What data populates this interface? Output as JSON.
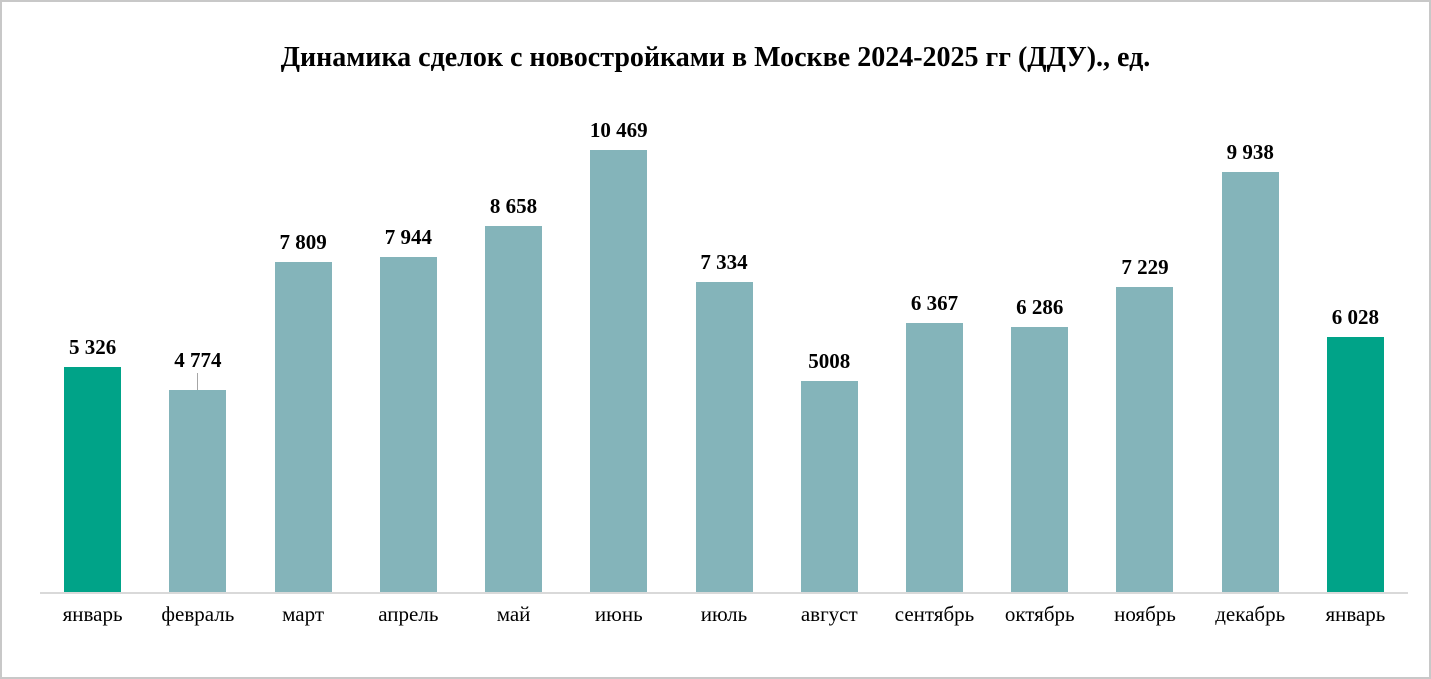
{
  "chart": {
    "title": "Динамика сделок с новостройками в Москве 2024-2025 гг (ДДУ)., ед."
  },
  "chart_data": {
    "type": "bar",
    "title": "Динамика сделок с новостройками в Москве 2024-2025 гг (ДДУ)., ед.",
    "categories": [
      "январь",
      "февраль",
      "март",
      "апрель",
      "май",
      "июнь",
      "июль",
      "август",
      "сентябрь",
      "октябрь",
      "ноябрь",
      "декабрь",
      "январь"
    ],
    "values": [
      5326,
      4774,
      7809,
      7944,
      8658,
      10469,
      7334,
      5008,
      6367,
      6286,
      7229,
      9938,
      6028
    ],
    "value_labels": [
      "5 326",
      "4 774",
      "7 809",
      "7 944",
      "8 658",
      "10 469",
      "7 334",
      "5008",
      "6 367",
      "6 286",
      "7 229",
      "9 938",
      "6 028"
    ],
    "bar_color_keys": [
      "green",
      "teal",
      "teal",
      "teal",
      "teal",
      "teal",
      "teal",
      "teal",
      "teal",
      "teal",
      "teal",
      "teal",
      "green"
    ],
    "colors": {
      "green": "#00A388",
      "teal": "#84B4BA",
      "axis": "#d9d9d9",
      "leader_line": "#a6a6a6",
      "border": "#c8c8c8",
      "text": "#000000"
    },
    "leader_line_index": 1,
    "xlabel": "",
    "ylabel": "",
    "ylim": [
      0,
      10469
    ],
    "grid": false,
    "legend": false,
    "data_labels": "above bars"
  }
}
